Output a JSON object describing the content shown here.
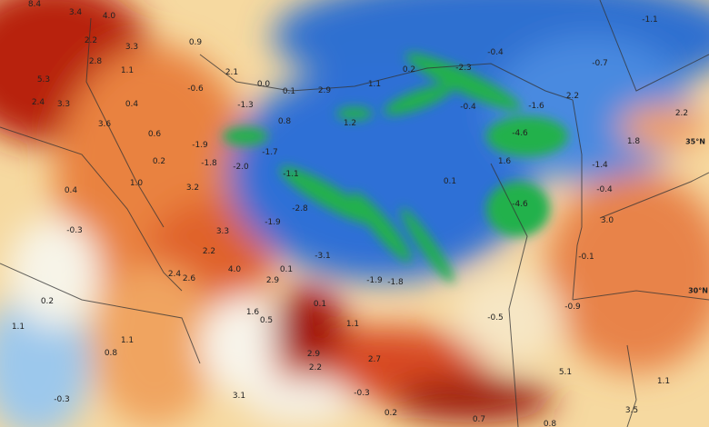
{
  "map": {
    "type": "temperature anomaly map",
    "colors": {
      "warm_strong": "#8a0f0a",
      "warm": "#e0622c",
      "mild": "#f5c98a",
      "neutral": "#f8f6ee",
      "cool": "#6ea7e6",
      "cold": "#1f5fc9",
      "very_cold": "#22b24a"
    },
    "lat_labels": [
      "35°N",
      "30°N"
    ],
    "values": [
      "8.4",
      "3.4",
      "4.0",
      "2.2",
      "3.3",
      "0.9",
      "2.8",
      "1.1",
      "2.1",
      "0.0",
      "0.1",
      "2.9",
      "5.3",
      "2.4",
      "3.3",
      "0.4",
      "-0.6",
      "-1.3",
      "0.8",
      "1.2",
      "3.6",
      "0.6",
      "-1.9",
      "-1.7",
      "-1.8",
      "-2.0",
      "0.2",
      "-1.1",
      "1.0",
      "3.2",
      "-2.8",
      "0.4",
      "0.2",
      "1.1",
      "-2.3",
      "-0.4",
      "-1.1",
      "-0.7",
      "-0.4",
      "-1.6",
      "2.2",
      "-4.6",
      "2.2",
      "1.8",
      "1.6",
      "-1.4",
      "0.1",
      "-0.4",
      "-4.6",
      "3.3",
      "-1.9",
      "2.2",
      "-3.1",
      "4.0",
      "0.1",
      "2.4",
      "2.6",
      "2.9",
      "0.2",
      "0.1",
      "1.6",
      "0.5",
      "1.1",
      "0.8",
      "2.9",
      "2.2",
      "3.1",
      "-0.3",
      "-0.3",
      "3.0",
      "-0.1",
      "-1.9",
      "-1.8",
      "-0.9",
      "-0.5",
      "2.7",
      "1.1",
      "5.1",
      "1.1",
      "3.5",
      "-0.3",
      "0.2",
      "0.7",
      "0.8",
      "1.1"
    ]
  }
}
